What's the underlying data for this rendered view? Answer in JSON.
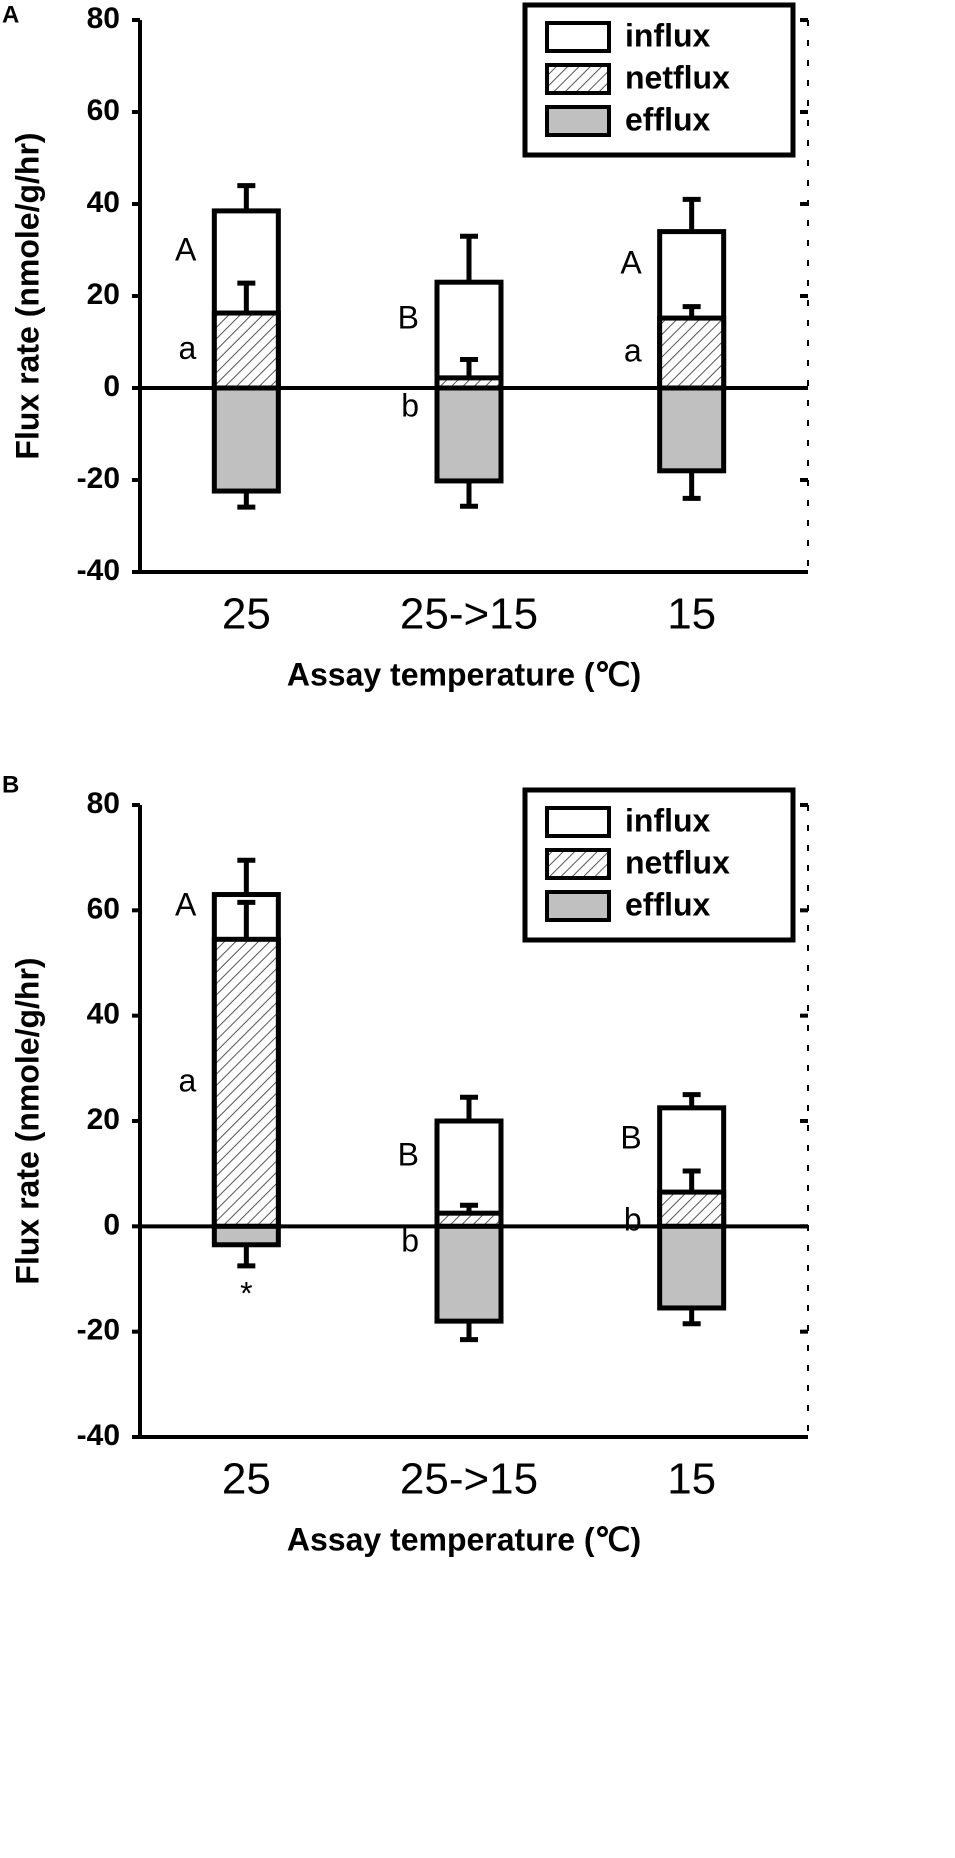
{
  "chart_data": [
    {
      "type": "bar",
      "panel": "A",
      "x_label": "Assay temperature (℃)",
      "y_label": "Flux rate (nmole/g/hr)",
      "categories": [
        "25",
        "25->15",
        "15"
      ],
      "series": [
        {
          "name": "influx",
          "color": "#ffffff",
          "values": [
            38.5,
            23,
            34
          ],
          "errors": [
            5.5,
            10,
            7
          ]
        },
        {
          "name": "netflux",
          "color": "hatch",
          "values": [
            16.3,
            2.2,
            15.2
          ],
          "errors": [
            6.5,
            4,
            2.5
          ]
        },
        {
          "name": "efflux",
          "color": "#c0c0c0",
          "values": [
            -22.4,
            -20.2,
            -18
          ],
          "errors": [
            3.5,
            5.5,
            6
          ]
        }
      ],
      "annotations": [
        {
          "text": "A",
          "category": 0,
          "series": 0
        },
        {
          "text": "a",
          "category": 0,
          "series": 1
        },
        {
          "text": "B",
          "category": 1,
          "series": 0
        },
        {
          "text": "b",
          "category": 1,
          "series": 1
        },
        {
          "text": "A",
          "category": 2,
          "series": 0
        },
        {
          "text": "a",
          "category": 2,
          "series": 1
        }
      ],
      "ylim": [
        -40,
        80
      ],
      "yticks": [
        -40,
        -20,
        0,
        20,
        40,
        60,
        80
      ],
      "legend": "upper right"
    },
    {
      "type": "bar",
      "panel": "B",
      "x_label": "Assay temperature (℃)",
      "y_label": "Flux rate (nmole/g/hr)",
      "categories": [
        "25",
        "25->15",
        "15"
      ],
      "series": [
        {
          "name": "influx",
          "color": "#ffffff",
          "values": [
            63,
            20,
            22.5
          ],
          "errors": [
            6.5,
            4.5,
            2.5
          ]
        },
        {
          "name": "netflux",
          "color": "hatch",
          "values": [
            54.5,
            2.5,
            6.5
          ],
          "errors": [
            7,
            1.5,
            4
          ]
        },
        {
          "name": "efflux",
          "color": "#c0c0c0",
          "values": [
            -3.5,
            -18,
            -15.5
          ],
          "errors": [
            4,
            3.5,
            3
          ]
        }
      ],
      "annotations": [
        {
          "text": "A",
          "category": 0,
          "series": 0
        },
        {
          "text": "a",
          "category": 0,
          "series": 1
        },
        {
          "text": "*",
          "category": 0,
          "series": 2
        },
        {
          "text": "B",
          "category": 1,
          "series": 0
        },
        {
          "text": "b",
          "category": 1,
          "series": 1
        },
        {
          "text": "B",
          "category": 2,
          "series": 0
        },
        {
          "text": "b",
          "category": 2,
          "series": 1
        }
      ],
      "ylim": [
        -40,
        80
      ],
      "yticks": [
        -40,
        -20,
        0,
        20,
        40,
        60,
        80
      ],
      "legend": "upper right"
    }
  ]
}
